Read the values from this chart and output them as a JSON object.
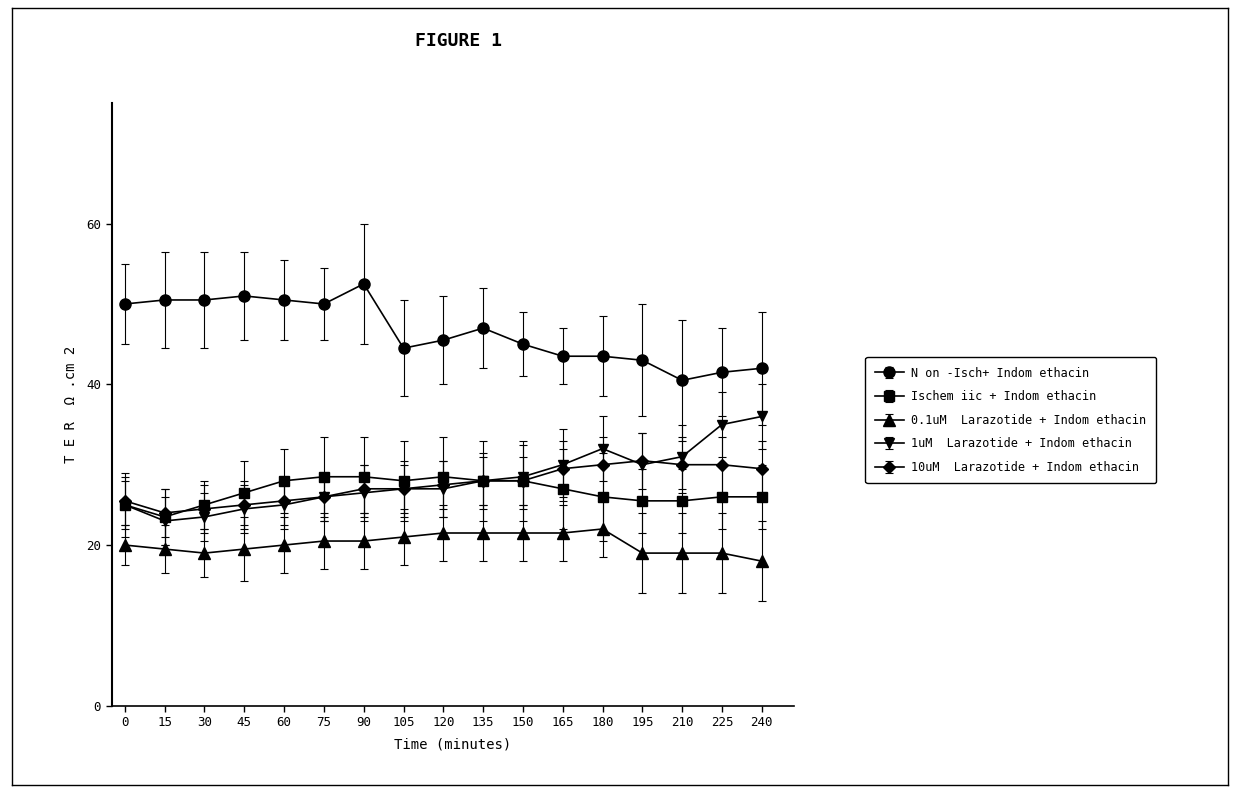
{
  "title": "FIGURE 1",
  "xlabel": "Time (minutes)",
  "ylabel": "T E R  Ω .cm 2",
  "x_ticks": [
    0,
    15,
    30,
    45,
    60,
    75,
    90,
    105,
    120,
    135,
    150,
    165,
    180,
    195,
    210,
    225,
    240
  ],
  "ylim": [
    0,
    75
  ],
  "yticks": [
    0,
    20,
    40,
    60
  ],
  "series": [
    {
      "label": "N on -Isch + Indom ethacin",
      "marker": "o",
      "y": [
        50,
        50.5,
        50.5,
        51,
        50.5,
        50,
        52.5,
        44.5,
        45.5,
        47,
        45,
        43.5,
        43.5,
        43,
        40.5,
        41.5,
        42
      ],
      "yerr": [
        5,
        6,
        6,
        5.5,
        5,
        4.5,
        7.5,
        6,
        5.5,
        5,
        4,
        3.5,
        5,
        7,
        7.5,
        5.5,
        7
      ]
    },
    {
      "label": "Ischem iic + Indom ethacin",
      "marker": "s",
      "y": [
        25,
        23.5,
        25,
        26.5,
        28,
        28.5,
        28.5,
        28,
        28.5,
        28,
        28,
        27,
        26,
        25.5,
        25.5,
        26,
        26
      ],
      "yerr": [
        4,
        3.5,
        3,
        4,
        4,
        5,
        5,
        5,
        5,
        5,
        5,
        5,
        5.5,
        4,
        4,
        4,
        4
      ]
    },
    {
      "label": "0.1uM  Larazotide + Indom ethacin",
      "marker": "^",
      "y": [
        20,
        19.5,
        19,
        19.5,
        20,
        20.5,
        20.5,
        21,
        21.5,
        21.5,
        21.5,
        21.5,
        22,
        19,
        19,
        19,
        18
      ],
      "yerr": [
        2.5,
        3,
        3,
        4,
        3.5,
        3.5,
        3.5,
        3.5,
        3.5,
        3.5,
        3.5,
        3.5,
        3.5,
        5,
        5,
        5,
        5
      ]
    },
    {
      "label": "1uM  Larazotide + Indom ethacin",
      "marker": "v",
      "y": [
        25,
        23,
        23.5,
        24.5,
        25,
        26,
        26.5,
        27,
        27,
        28,
        28.5,
        30,
        32,
        30,
        31,
        35,
        36
      ],
      "yerr": [
        3,
        3,
        3,
        3,
        3,
        3,
        3.5,
        3.5,
        3.5,
        3.5,
        4,
        4.5,
        4,
        4,
        4,
        4,
        4
      ]
    },
    {
      "label": "10uM  Larazotide + Indom ethacin",
      "marker": "D",
      "y": [
        25.5,
        24,
        24.5,
        25,
        25.5,
        26,
        27,
        27,
        27.5,
        28,
        28,
        29.5,
        30,
        30.5,
        30,
        30,
        29.5
      ],
      "yerr": [
        3,
        3,
        3,
        3,
        3,
        3,
        3,
        3,
        3,
        3,
        3,
        3.5,
        3.5,
        3.5,
        3.5,
        3.5,
        3.5
      ]
    }
  ],
  "color": "#000000",
  "bg_color": "#ffffff",
  "markersizes": [
    8,
    7,
    9,
    7,
    6
  ],
  "legend_labels": [
    "N on -Isch+ Indom ethacin",
    "Ischem iic + Indom ethacin",
    "0.1uM  Larazotide + Indom ethacin",
    "1uM  Larazotide + Indom ethacin",
    "10uM  Larazotide + Indom ethacin"
  ]
}
